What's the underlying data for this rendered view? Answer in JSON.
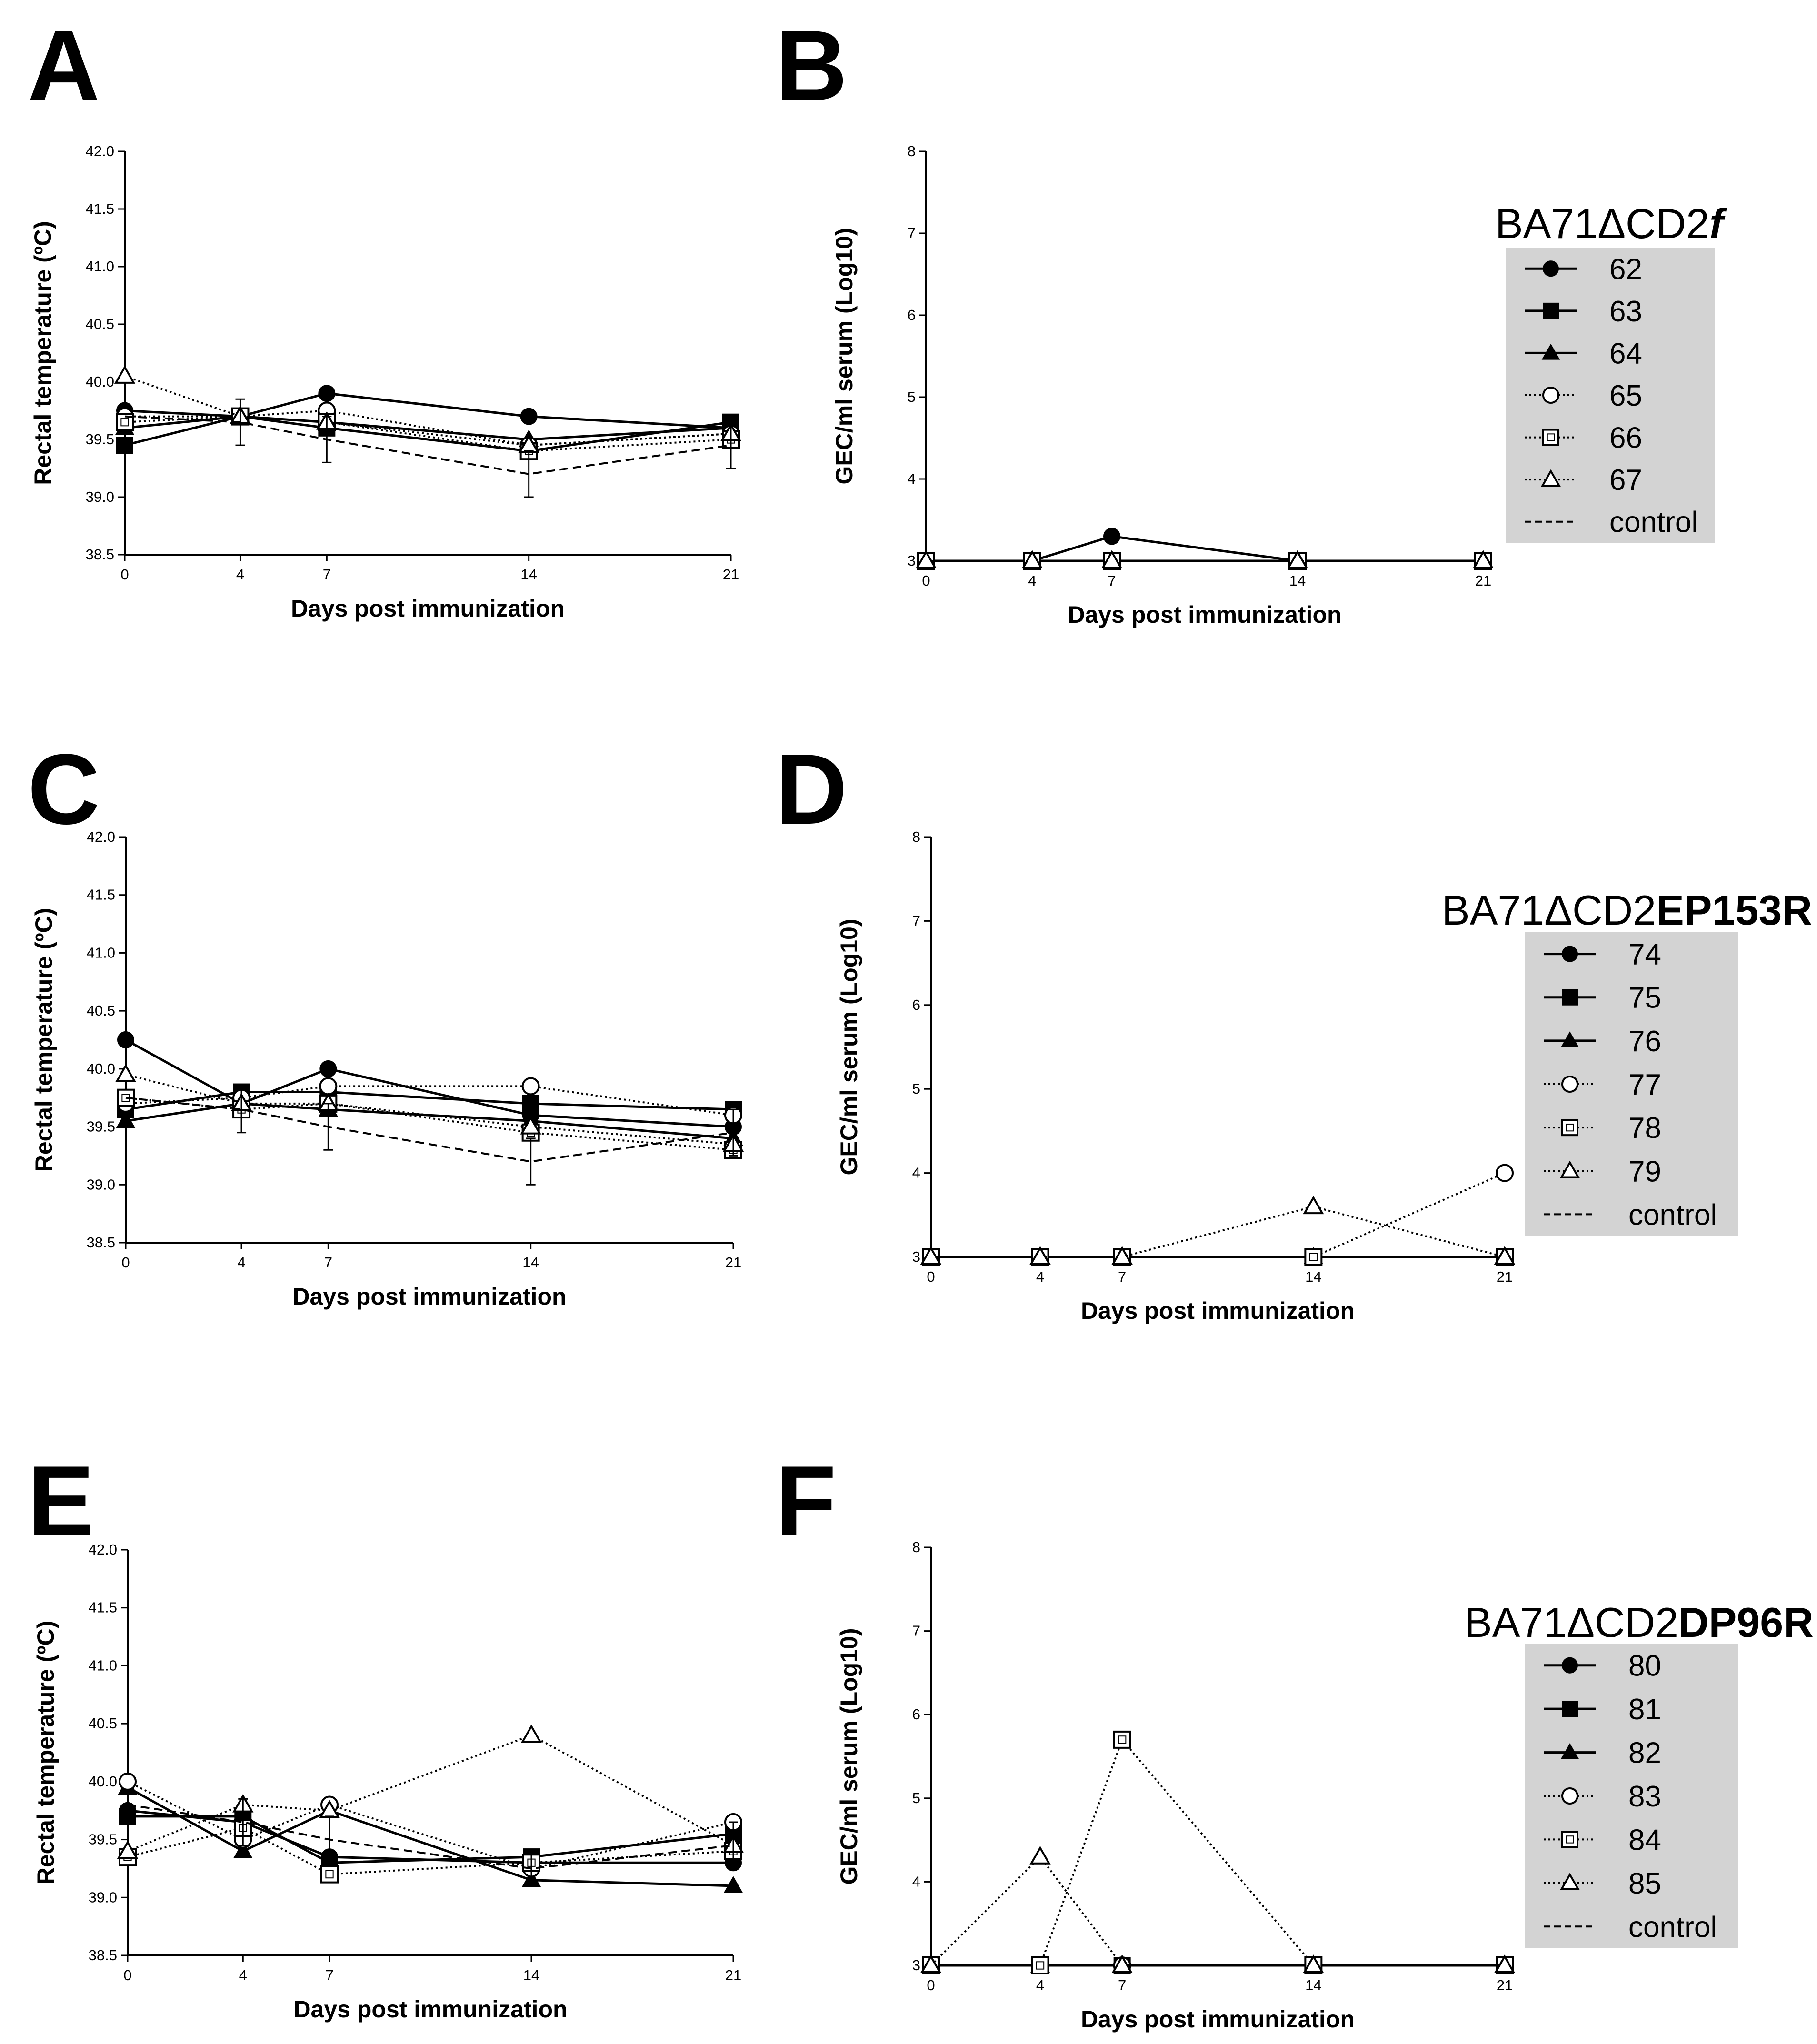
{
  "panels": [
    {
      "id": "A",
      "letter": "A"
    },
    {
      "id": "B",
      "letter": "B"
    },
    {
      "id": "C",
      "letter": "C"
    },
    {
      "id": "D",
      "letter": "D"
    },
    {
      "id": "E",
      "letter": "E"
    },
    {
      "id": "F",
      "letter": "F"
    }
  ],
  "legends": [
    {
      "title_plain": "BA71ΔCD2",
      "title_emph": "f",
      "emph_style": "bold-italic",
      "entries": [
        "62",
        "63",
        "64",
        "65",
        "66",
        "67",
        "control"
      ]
    },
    {
      "title_plain": "BA71ΔCD2",
      "title_emph": "EP153R",
      "emph_style": "bold",
      "entries": [
        "74",
        "75",
        "76",
        "77",
        "78",
        "79",
        "control"
      ]
    },
    {
      "title_plain": "BA71ΔCD2",
      "title_emph": "DP96R",
      "emph_style": "bold",
      "entries": [
        "80",
        "81",
        "82",
        "83",
        "84",
        "85",
        "control"
      ]
    }
  ],
  "series_styles": [
    {
      "marker": "filled-circle",
      "line": "solid"
    },
    {
      "marker": "filled-square",
      "line": "solid"
    },
    {
      "marker": "filled-triangle",
      "line": "solid"
    },
    {
      "marker": "open-circle",
      "line": "dotted"
    },
    {
      "marker": "open-square",
      "line": "dotted"
    },
    {
      "marker": "open-triangle",
      "line": "dotted"
    },
    {
      "marker": "none",
      "line": "dashed"
    }
  ],
  "colors": {
    "line": "#000000",
    "legend_box": "#d3d3d3"
  },
  "chart_data": [
    {
      "id": "A",
      "type": "line",
      "xlabel": "Days post immunization",
      "ylabel": "Rectal temperature (ºC)",
      "categories": [
        "0",
        "4",
        "7",
        "14",
        "21"
      ],
      "ylim": [
        38.5,
        42.0
      ],
      "yticks": [
        "38.5",
        "39.0",
        "39.5",
        "40.0",
        "40.5",
        "41.0",
        "41.5",
        "42.0"
      ],
      "series": [
        {
          "name": "62",
          "values": [
            39.75,
            39.7,
            39.9,
            39.7,
            39.6
          ]
        },
        {
          "name": "63",
          "values": [
            39.45,
            39.7,
            39.6,
            39.4,
            39.65
          ]
        },
        {
          "name": "64",
          "values": [
            39.6,
            39.7,
            39.65,
            39.5,
            39.6
          ]
        },
        {
          "name": "65",
          "values": [
            39.7,
            39.7,
            39.75,
            39.45,
            39.55
          ]
        },
        {
          "name": "66",
          "values": [
            39.65,
            39.7,
            39.65,
            39.4,
            39.5
          ]
        },
        {
          "name": "67",
          "values": [
            40.05,
            39.7,
            39.65,
            39.45,
            39.55
          ]
        },
        {
          "name": "control",
          "values": [
            39.7,
            39.65,
            39.5,
            39.2,
            39.45
          ],
          "err": [
            0,
            0.2,
            0.2,
            0.2,
            0.2
          ]
        }
      ]
    },
    {
      "id": "B",
      "type": "line",
      "xlabel": "Days post immunization",
      "ylabel": "GEC/ml serum (Log10)",
      "categories": [
        "0",
        "4",
        "7",
        "14",
        "21"
      ],
      "ylim": [
        3,
        8
      ],
      "yticks": [
        "3",
        "4",
        "5",
        "6",
        "7",
        "8"
      ],
      "series": [
        {
          "name": "62",
          "values": [
            3,
            3,
            3.3,
            3,
            3
          ]
        },
        {
          "name": "63",
          "values": [
            3,
            3,
            3,
            3,
            3
          ]
        },
        {
          "name": "64",
          "values": [
            3,
            3,
            3,
            3,
            3
          ]
        },
        {
          "name": "65",
          "values": [
            3,
            3,
            3,
            3,
            3
          ]
        },
        {
          "name": "66",
          "values": [
            3,
            3,
            3,
            3,
            3
          ]
        },
        {
          "name": "67",
          "values": [
            3,
            3,
            3,
            3,
            3
          ]
        }
      ]
    },
    {
      "id": "C",
      "type": "line",
      "xlabel": "Days post immunization",
      "ylabel": "Rectal temperature (ºC)",
      "categories": [
        "0",
        "4",
        "7",
        "14",
        "21"
      ],
      "ylim": [
        38.5,
        42.0
      ],
      "yticks": [
        "38.5",
        "39.0",
        "39.5",
        "40.0",
        "40.5",
        "41.0",
        "41.5",
        "42.0"
      ],
      "series": [
        {
          "name": "74",
          "values": [
            40.25,
            39.7,
            40.0,
            39.6,
            39.5
          ]
        },
        {
          "name": "75",
          "values": [
            39.65,
            39.8,
            39.8,
            39.7,
            39.65
          ]
        },
        {
          "name": "76",
          "values": [
            39.55,
            39.7,
            39.65,
            39.55,
            39.4
          ]
        },
        {
          "name": "77",
          "values": [
            39.7,
            39.75,
            39.85,
            39.85,
            39.6
          ]
        },
        {
          "name": "78",
          "values": [
            39.75,
            39.65,
            39.7,
            39.45,
            39.3
          ]
        },
        {
          "name": "79",
          "values": [
            39.95,
            39.7,
            39.7,
            39.5,
            39.35
          ]
        },
        {
          "name": "control",
          "values": [
            39.75,
            39.65,
            39.5,
            39.2,
            39.45
          ],
          "err": [
            0,
            0.2,
            0.2,
            0.2,
            0.2
          ]
        }
      ]
    },
    {
      "id": "D",
      "type": "line",
      "xlabel": "Days post immunization",
      "ylabel": "GEC/ml serum (Log10)",
      "categories": [
        "0",
        "4",
        "7",
        "14",
        "21"
      ],
      "ylim": [
        3,
        8
      ],
      "yticks": [
        "3",
        "4",
        "5",
        "6",
        "7",
        "8"
      ],
      "series": [
        {
          "name": "74",
          "values": [
            3,
            3,
            3,
            3,
            3
          ]
        },
        {
          "name": "75",
          "values": [
            3,
            3,
            3,
            3,
            3
          ]
        },
        {
          "name": "76",
          "values": [
            3,
            3,
            3,
            3,
            3
          ]
        },
        {
          "name": "77",
          "values": [
            3,
            3,
            3,
            3,
            4.0
          ]
        },
        {
          "name": "78",
          "values": [
            3,
            3,
            3,
            3,
            3
          ]
        },
        {
          "name": "79",
          "values": [
            3,
            3,
            3,
            3.6,
            3
          ]
        }
      ]
    },
    {
      "id": "E",
      "type": "line",
      "xlabel": "Days post immunization",
      "ylabel": "Rectal temperature (ºC)",
      "categories": [
        "0",
        "4",
        "7",
        "14",
        "21"
      ],
      "ylim": [
        38.5,
        42.0
      ],
      "yticks": [
        "38.5",
        "39.0",
        "39.5",
        "40.0",
        "40.5",
        "41.0",
        "41.5",
        "42.0"
      ],
      "series": [
        {
          "name": "80",
          "values": [
            39.75,
            39.65,
            39.35,
            39.3,
            39.3
          ]
        },
        {
          "name": "81",
          "values": [
            39.7,
            39.7,
            39.3,
            39.35,
            39.55
          ]
        },
        {
          "name": "82",
          "values": [
            39.95,
            39.4,
            39.75,
            39.15,
            39.1
          ]
        },
        {
          "name": "83",
          "values": [
            40.0,
            39.5,
            39.8,
            39.25,
            39.65
          ]
        },
        {
          "name": "84",
          "values": [
            39.35,
            39.6,
            39.2,
            39.3,
            39.4
          ]
        },
        {
          "name": "85",
          "values": [
            39.4,
            39.8,
            39.75,
            40.4,
            39.45
          ]
        },
        {
          "name": "control",
          "values": [
            39.8,
            39.65,
            39.5,
            39.25,
            39.45
          ],
          "err": [
            0,
            0.2,
            0.2,
            0.15,
            0.2
          ]
        }
      ]
    },
    {
      "id": "F",
      "type": "line",
      "xlabel": "Days post immunization",
      "ylabel": "GEC/ml serum (Log10)",
      "categories": [
        "0",
        "4",
        "7",
        "14",
        "21"
      ],
      "ylim": [
        3,
        8
      ],
      "yticks": [
        "3",
        "4",
        "5",
        "6",
        "7",
        "8"
      ],
      "series": [
        {
          "name": "80",
          "values": [
            3,
            3,
            3,
            3,
            3
          ]
        },
        {
          "name": "81",
          "values": [
            3,
            3,
            3,
            3,
            3
          ]
        },
        {
          "name": "82",
          "values": [
            3,
            3,
            3,
            3,
            3
          ]
        },
        {
          "name": "83",
          "values": [
            3,
            3,
            3,
            3,
            3
          ]
        },
        {
          "name": "84",
          "values": [
            3,
            3,
            5.7,
            3,
            3
          ]
        },
        {
          "name": "85",
          "values": [
            3,
            4.3,
            3,
            3,
            3
          ]
        }
      ]
    }
  ]
}
